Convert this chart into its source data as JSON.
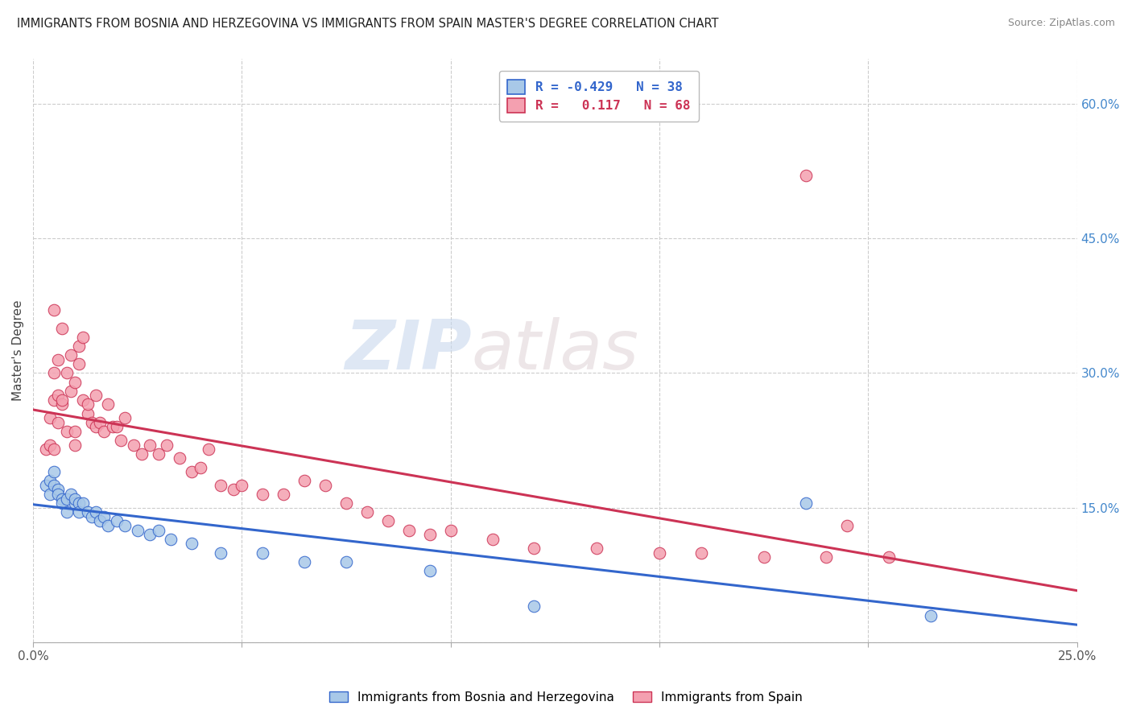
{
  "title": "IMMIGRANTS FROM BOSNIA AND HERZEGOVINA VS IMMIGRANTS FROM SPAIN MASTER'S DEGREE CORRELATION CHART",
  "source": "Source: ZipAtlas.com",
  "ylabel": "Master's Degree",
  "xlim": [
    0.0,
    0.25
  ],
  "ylim": [
    0.0,
    0.65
  ],
  "blue_color": "#a8c8e8",
  "pink_color": "#f4a0b0",
  "blue_line_color": "#3366cc",
  "pink_line_color": "#cc3355",
  "watermark_zip": "ZIP",
  "watermark_atlas": "atlas",
  "blue_x": [
    0.003,
    0.004,
    0.004,
    0.005,
    0.005,
    0.006,
    0.006,
    0.007,
    0.007,
    0.008,
    0.008,
    0.009,
    0.01,
    0.01,
    0.011,
    0.011,
    0.012,
    0.013,
    0.014,
    0.015,
    0.016,
    0.017,
    0.018,
    0.02,
    0.022,
    0.025,
    0.028,
    0.03,
    0.033,
    0.038,
    0.045,
    0.055,
    0.065,
    0.075,
    0.095,
    0.12,
    0.185,
    0.215
  ],
  "blue_y": [
    0.175,
    0.165,
    0.18,
    0.19,
    0.175,
    0.17,
    0.165,
    0.16,
    0.155,
    0.16,
    0.145,
    0.165,
    0.155,
    0.16,
    0.155,
    0.145,
    0.155,
    0.145,
    0.14,
    0.145,
    0.135,
    0.14,
    0.13,
    0.135,
    0.13,
    0.125,
    0.12,
    0.125,
    0.115,
    0.11,
    0.1,
    0.1,
    0.09,
    0.09,
    0.08,
    0.04,
    0.155,
    0.03
  ],
  "pink_x": [
    0.003,
    0.004,
    0.004,
    0.005,
    0.005,
    0.005,
    0.006,
    0.006,
    0.006,
    0.007,
    0.007,
    0.008,
    0.008,
    0.009,
    0.009,
    0.01,
    0.01,
    0.01,
    0.011,
    0.011,
    0.012,
    0.012,
    0.013,
    0.013,
    0.014,
    0.015,
    0.015,
    0.016,
    0.017,
    0.018,
    0.019,
    0.02,
    0.021,
    0.022,
    0.024,
    0.026,
    0.028,
    0.03,
    0.032,
    0.035,
    0.038,
    0.04,
    0.042,
    0.045,
    0.048,
    0.05,
    0.055,
    0.06,
    0.065,
    0.07,
    0.075,
    0.08,
    0.085,
    0.09,
    0.095,
    0.1,
    0.11,
    0.12,
    0.135,
    0.15,
    0.16,
    0.175,
    0.19,
    0.205,
    0.195,
    0.005,
    0.007,
    0.185
  ],
  "pink_y": [
    0.215,
    0.22,
    0.25,
    0.27,
    0.3,
    0.215,
    0.245,
    0.315,
    0.275,
    0.265,
    0.27,
    0.3,
    0.235,
    0.28,
    0.32,
    0.22,
    0.29,
    0.235,
    0.31,
    0.33,
    0.27,
    0.34,
    0.255,
    0.265,
    0.245,
    0.24,
    0.275,
    0.245,
    0.235,
    0.265,
    0.24,
    0.24,
    0.225,
    0.25,
    0.22,
    0.21,
    0.22,
    0.21,
    0.22,
    0.205,
    0.19,
    0.195,
    0.215,
    0.175,
    0.17,
    0.175,
    0.165,
    0.165,
    0.18,
    0.175,
    0.155,
    0.145,
    0.135,
    0.125,
    0.12,
    0.125,
    0.115,
    0.105,
    0.105,
    0.1,
    0.1,
    0.095,
    0.095,
    0.095,
    0.13,
    0.37,
    0.35,
    0.52
  ]
}
